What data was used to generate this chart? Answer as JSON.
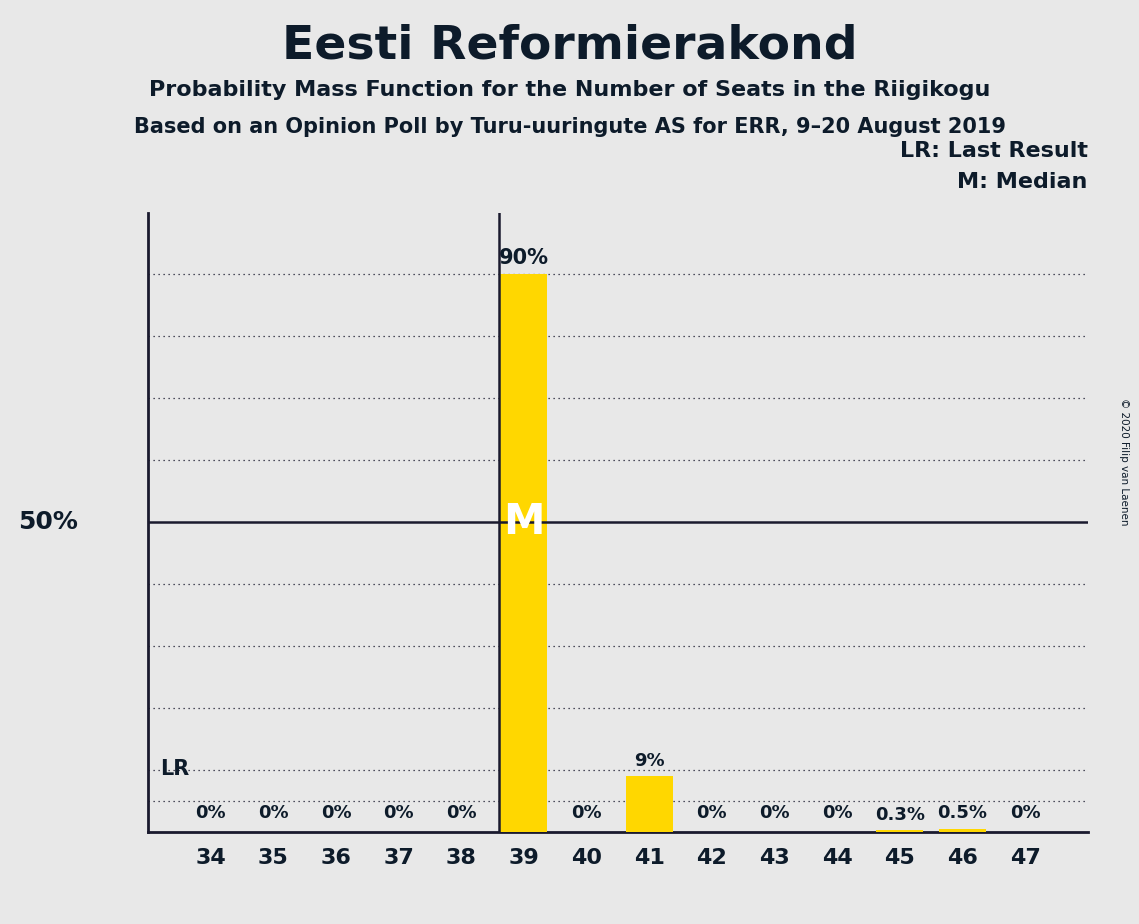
{
  "title": "Eesti Reformierakond",
  "subtitle1": "Probability Mass Function for the Number of Seats in the Riigikogu",
  "subtitle2": "Based on an Opinion Poll by Turu-uuringute AS for ERR, 9–20 August 2019",
  "copyright": "© 2020 Filip van Laenen",
  "seats": [
    34,
    35,
    36,
    37,
    38,
    39,
    40,
    41,
    42,
    43,
    44,
    45,
    46,
    47
  ],
  "probabilities": [
    0.0,
    0.0,
    0.0,
    0.0,
    0.0,
    90.0,
    0.0,
    9.0,
    0.0,
    0.0,
    0.0,
    0.3,
    0.5,
    0.0
  ],
  "bar_labels": [
    "0%",
    "0%",
    "0%",
    "0%",
    "0%",
    "90%",
    "0%",
    "9%",
    "0%",
    "0%",
    "0%",
    "0.3%",
    "0.5%",
    "0%"
  ],
  "median_seat": 39,
  "last_result_seat": 39,
  "bar_color": "#FFD700",
  "background_color": "#E8E8E8",
  "text_color": "#0d1b2a",
  "ylabel_50": "50%",
  "lr_label": "LR",
  "median_label": "M",
  "legend_lr": "LR: Last Result",
  "legend_m": "M: Median",
  "ylim": [
    0,
    100
  ],
  "ytick_positions": [
    10,
    20,
    30,
    40,
    60,
    70,
    80,
    90
  ],
  "grid_color": "#1a1a2e",
  "fifty_line_color": "#1a1a2e",
  "spine_color": "#1a1a2e"
}
